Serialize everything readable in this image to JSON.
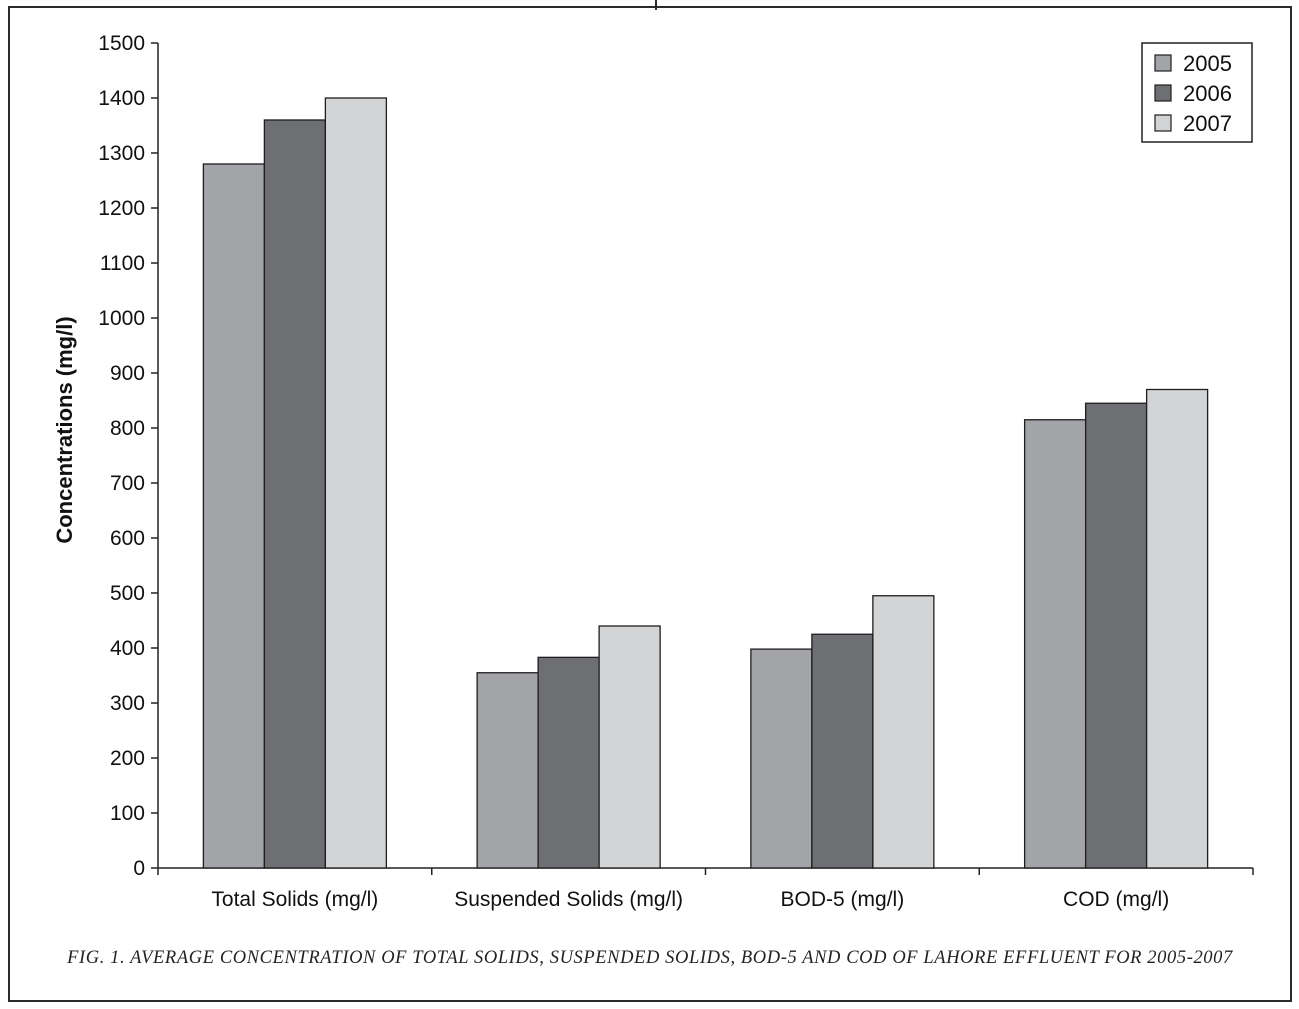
{
  "figure_caption": "FIG. 1. AVERAGE CONCENTRATION OF TOTAL SOLIDS, SUSPENDED SOLIDS, BOD-5 AND COD OF LAHORE EFFLUENT FOR 2005-2007",
  "chart_data": {
    "type": "bar",
    "title": "",
    "xlabel": "",
    "ylabel": "Concentrations (mg/l)",
    "ylim": [
      0,
      1500
    ],
    "ytick_step": 100,
    "grid": false,
    "legend_position": "top-right",
    "categories": [
      "Total Solids (mg/l)",
      "Suspended Solids (mg/l)",
      "BOD-5 (mg/l)",
      "COD (mg/l)"
    ],
    "series": [
      {
        "name": "2005",
        "color": "#a3a4a8",
        "values": [
          1280,
          355,
          398,
          815
        ]
      },
      {
        "name": "2006",
        "color": "#6e6f73",
        "values": [
          1360,
          383,
          425,
          845
        ]
      },
      {
        "name": "2007",
        "color": "#d3d4d6",
        "values": [
          1400,
          440,
          495,
          870
        ]
      }
    ]
  }
}
